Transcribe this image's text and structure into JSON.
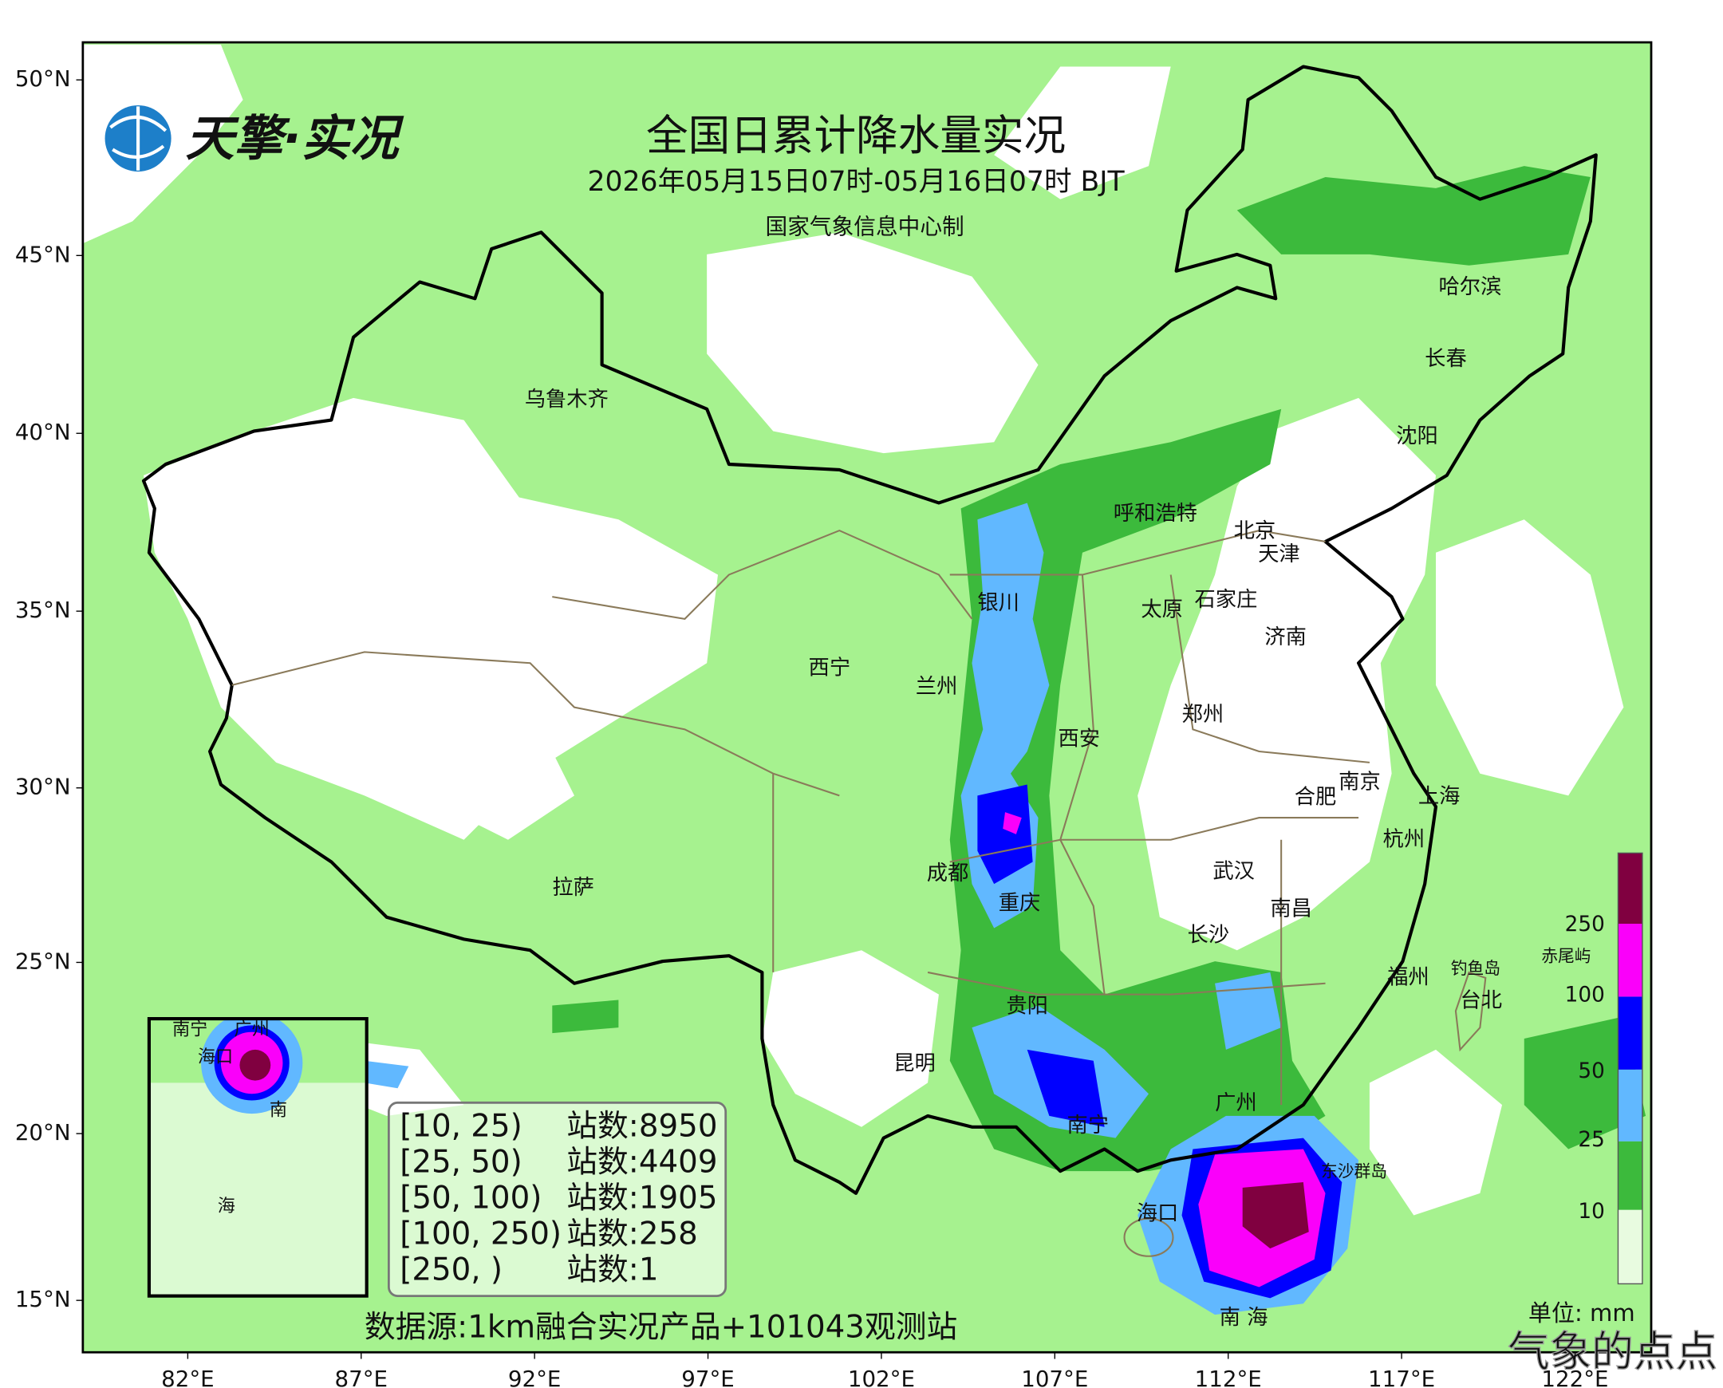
{
  "header": {
    "logo_text": "天擎·实况",
    "title": "全国日累计降水量实况",
    "subtitle": "2026年05月15日07时-05月16日07时 BJT",
    "producer": "国家气象信息中心制"
  },
  "axes": {
    "lat_labels": [
      "50°N",
      "45°N",
      "40°N",
      "35°N",
      "30°N",
      "25°N",
      "20°N",
      "15°N"
    ],
    "lon_labels": [
      "82°E",
      "87°E",
      "92°E",
      "97°E",
      "102°E",
      "107°E",
      "112°E",
      "117°E",
      "122°E"
    ]
  },
  "cities": [
    "乌鲁木齐",
    "哈尔滨",
    "长春",
    "沈阳",
    "呼和浩特",
    "北京",
    "天津",
    "石家庄",
    "太原",
    "银川",
    "济南",
    "西宁",
    "兰州",
    "郑州",
    "西安",
    "南京",
    "合肥",
    "上海",
    "杭州",
    "武汉",
    "成都",
    "拉萨",
    "重庆",
    "南昌",
    "长沙",
    "福州",
    "钓鱼岛",
    "赤尾屿",
    "台北",
    "贵阳",
    "昆明",
    "广州",
    "南宁",
    "东沙群岛",
    "海口",
    "南 海"
  ],
  "stats": {
    "rows": [
      [
        "[10, 25)",
        "站数:8950"
      ],
      [
        "[25, 50)",
        "站数:4409"
      ],
      [
        "[50, 100)",
        "站数:1905"
      ],
      [
        "[100, 250)",
        "站数:258"
      ],
      [
        "[250, )",
        "站数:1"
      ]
    ]
  },
  "colorbar": {
    "labels": [
      "10",
      "25",
      "50",
      "100",
      "250"
    ],
    "unit": "单位: mm"
  },
  "inset": {
    "labels": [
      "南宁",
      "广州",
      "海口",
      "南",
      "海"
    ]
  },
  "source": "数据源:1km融合实况产品+101043观测站",
  "watermark": "气象的点点"
}
